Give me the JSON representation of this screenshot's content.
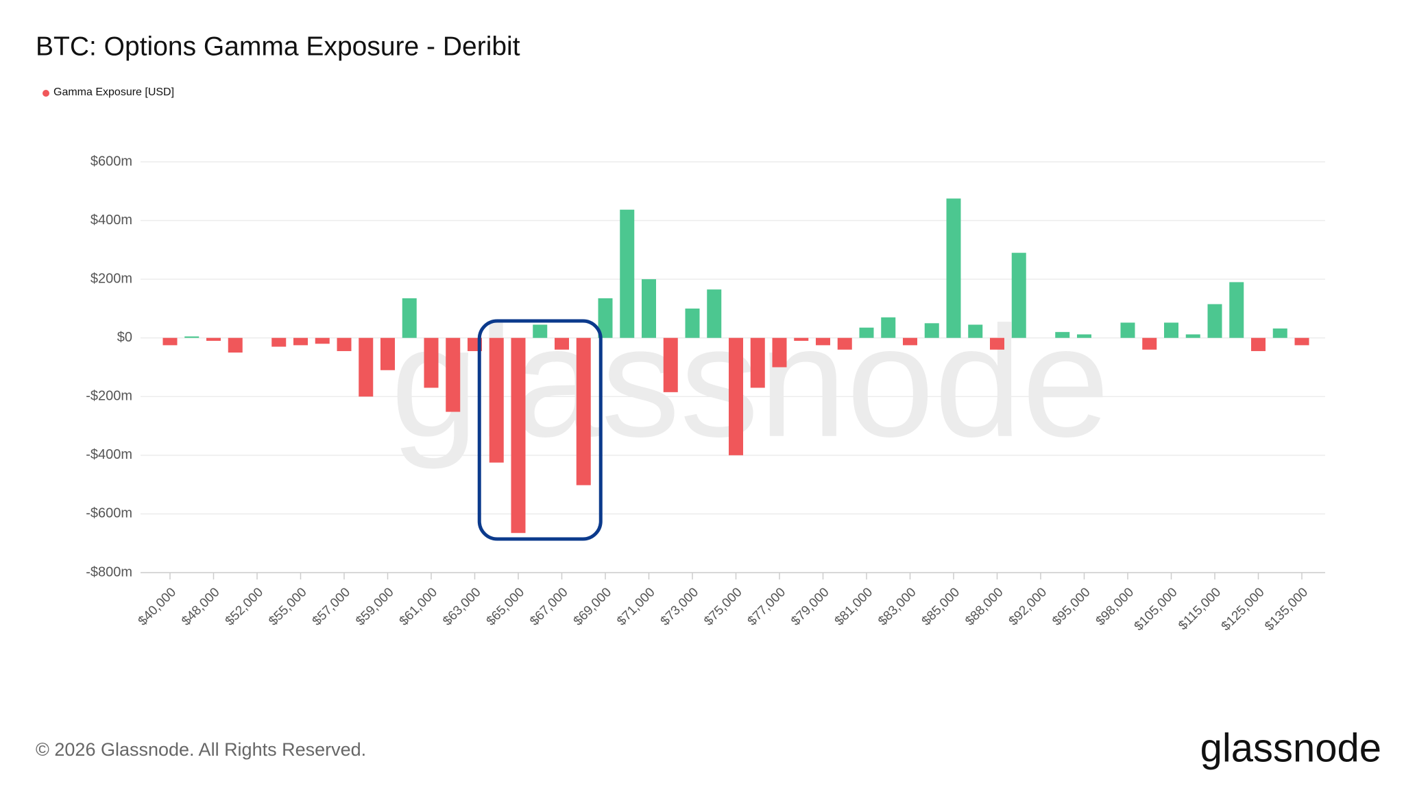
{
  "chart_data": {
    "type": "bar",
    "title": "BTC: Options Gamma Exposure - Deribit",
    "series": [
      {
        "name": "Gamma Exposure [USD]",
        "color": "#f0575a",
        "positive_color": "#4cc790",
        "negative_color": "#f0575a",
        "values": [
          -25,
          5,
          -10,
          -50,
          0,
          -30,
          -25,
          -20,
          -45,
          -200,
          -110,
          135,
          -170,
          -252,
          -45,
          -425,
          -665,
          45,
          -40,
          -502,
          135,
          437,
          200,
          -185,
          100,
          165,
          -400,
          -170,
          -100,
          -10,
          -25,
          -40,
          35,
          70,
          -25,
          50,
          475,
          45,
          -40,
          290,
          0,
          20,
          12,
          0,
          52,
          -40,
          52,
          12,
          115,
          190,
          -45,
          32,
          -25
        ]
      }
    ],
    "categories": [
      "$40,000",
      null,
      "$48,000",
      null,
      "$52,000",
      null,
      "$55,000",
      null,
      "$57,000",
      null,
      "$59,000",
      null,
      "$61,000",
      null,
      "$63,000",
      null,
      "$65,000",
      null,
      "$67,000",
      null,
      "$69,000",
      null,
      "$71,000",
      null,
      "$73,000",
      null,
      "$75,000",
      null,
      "$77,000",
      null,
      "$79,000",
      null,
      "$81,000",
      null,
      "$83,000",
      null,
      "$85,000",
      null,
      "$88,000",
      null,
      "$92,000",
      null,
      "$95,000",
      null,
      "$98,000",
      null,
      "$105,000",
      null,
      "$115,000",
      null,
      "$125,000",
      null,
      "$135,000"
    ],
    "ylim": [
      -800,
      600
    ],
    "yticks": [
      {
        "value": -800,
        "label": "-$800m"
      },
      {
        "value": -600,
        "label": "-$600m"
      },
      {
        "value": -400,
        "label": "-$400m"
      },
      {
        "value": -200,
        "label": "-$200m"
      },
      {
        "value": 0,
        "label": "$0"
      },
      {
        "value": 200,
        "label": "$200m"
      },
      {
        "value": 400,
        "label": "$400m"
      },
      {
        "value": 600,
        "label": "$600m"
      }
    ],
    "grid": true,
    "watermark": "glassnode"
  },
  "footer": {
    "copyright": "© 2026 Glassnode. All Rights Reserved.",
    "logo": "glassnode"
  }
}
